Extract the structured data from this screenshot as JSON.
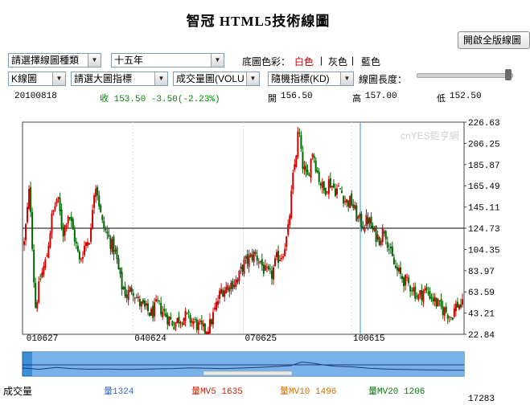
{
  "header": {
    "title": "智冠 HTML5技術線圖"
  },
  "toolbar": {
    "fullscreen_label": "開啟全版線圖",
    "chart_type_select": "請選擇線圖種類",
    "period_select": "十五年",
    "bg_color_label": "底圖色彩：",
    "bg_colors": [
      {
        "label": "白色",
        "color": "#cc0000"
      },
      {
        "label": "灰色",
        "color": "#000000"
      },
      {
        "label": "藍色",
        "color": "#000000"
      }
    ],
    "separator": "|",
    "k_select": "K線圖",
    "main_indicator_select": "請選大圖指標",
    "volume_select": "成交量圖(VOLU",
    "random_indicator_select": "隨機指標(KD)",
    "length_label": "線圖長度：",
    "length_slider_value": 0.98
  },
  "quote": {
    "date": "20100818",
    "close": "收 153.50 -3.50(-2.23%)",
    "open_label": "開",
    "open": "156.50",
    "high_label": "高",
    "high": "157.00",
    "low_label": "低",
    "low": "152.50",
    "close_color": "#008800"
  },
  "watermark": "cnYES鉅亨網",
  "bottom": {
    "volume_label": "成交量",
    "vol": "量1324",
    "mv5": "量MV5 1635",
    "mv10": "量MV10 1496",
    "mv20": "量MV20 1206",
    "vol_color": "#3366cc",
    "mv5_color": "#cc2200",
    "mv10_color": "#d07000",
    "mv20_color": "#117711",
    "max_volume": "17283"
  },
  "chart_data": {
    "type": "candlestick",
    "y_ticks": [
      "226.63",
      "206.25",
      "185.87",
      "165.49",
      "145.11",
      "124.73",
      "104.35",
      "83.97",
      "63.59",
      "43.21",
      "22.84"
    ],
    "x_ticks": [
      "010627",
      "040624",
      "070625",
      "100615"
    ],
    "ylim": [
      22.84,
      226.63
    ],
    "reference_line": 124.73,
    "crosshair_x_label": "100615",
    "colors": {
      "up": "#cc0000",
      "down": "#006600",
      "reference": "#000000",
      "crosshair": "#66bbee",
      "grid": "#dddddd"
    },
    "price_path": [
      [
        0,
        110
      ],
      [
        2,
        165
      ],
      [
        4,
        48
      ],
      [
        6,
        78
      ],
      [
        8,
        95
      ],
      [
        10,
        135
      ],
      [
        12,
        155
      ],
      [
        14,
        120
      ],
      [
        16,
        140
      ],
      [
        18,
        118
      ],
      [
        20,
        92
      ],
      [
        22,
        110
      ],
      [
        24,
        118
      ],
      [
        25,
        160
      ],
      [
        26,
        168
      ],
      [
        28,
        130
      ],
      [
        30,
        118
      ],
      [
        33,
        100
      ],
      [
        35,
        70
      ],
      [
        37,
        60
      ],
      [
        39,
        68
      ],
      [
        41,
        55
      ],
      [
        43,
        48
      ],
      [
        46,
        42
      ],
      [
        48,
        52
      ],
      [
        50,
        45
      ],
      [
        52,
        38
      ],
      [
        54,
        33
      ],
      [
        56,
        38
      ],
      [
        58,
        40
      ],
      [
        61,
        35
      ],
      [
        63,
        30
      ],
      [
        65,
        26
      ],
      [
        67,
        32
      ],
      [
        69,
        48
      ],
      [
        71,
        65
      ],
      [
        73,
        68
      ],
      [
        75,
        72
      ],
      [
        77,
        75
      ],
      [
        79,
        90
      ],
      [
        81,
        95
      ],
      [
        83,
        100
      ],
      [
        85,
        93
      ],
      [
        87,
        82
      ],
      [
        89,
        78
      ],
      [
        91,
        95
      ],
      [
        93,
        100
      ],
      [
        95,
        118
      ],
      [
        97,
        175
      ],
      [
        98,
        196
      ],
      [
        99,
        222
      ],
      [
        100,
        190
      ],
      [
        102,
        170
      ],
      [
        104,
        200
      ],
      [
        106,
        175
      ],
      [
        108,
        160
      ],
      [
        110,
        170
      ],
      [
        112,
        162
      ],
      [
        114,
        162
      ],
      [
        116,
        150
      ],
      [
        118,
        150
      ],
      [
        120,
        135
      ],
      [
        122,
        128
      ],
      [
        124,
        133
      ],
      [
        126,
        120
      ],
      [
        128,
        115
      ],
      [
        130,
        125
      ],
      [
        132,
        100
      ],
      [
        134,
        85
      ],
      [
        136,
        78
      ],
      [
        138,
        72
      ],
      [
        140,
        68
      ],
      [
        142,
        58
      ],
      [
        144,
        65
      ],
      [
        146,
        62
      ],
      [
        148,
        55
      ],
      [
        150,
        48
      ],
      [
        152,
        45
      ],
      [
        154,
        40
      ],
      [
        156,
        52
      ],
      [
        158,
        50
      ]
    ],
    "volume_path": [
      [
        0,
        4000
      ],
      [
        6,
        3000
      ],
      [
        12,
        4500
      ],
      [
        18,
        3500
      ],
      [
        24,
        3000
      ],
      [
        30,
        3200
      ],
      [
        36,
        2800
      ],
      [
        42,
        3000
      ],
      [
        48,
        3300
      ],
      [
        54,
        3600
      ],
      [
        60,
        4200
      ],
      [
        66,
        3800
      ],
      [
        72,
        3500
      ],
      [
        78,
        4000
      ],
      [
        84,
        4500
      ],
      [
        90,
        5200
      ],
      [
        96,
        6000
      ],
      [
        100,
        9000
      ],
      [
        104,
        8000
      ],
      [
        108,
        6500
      ],
      [
        112,
        5500
      ],
      [
        118,
        5000
      ],
      [
        124,
        3800
      ],
      [
        130,
        3200
      ],
      [
        136,
        2800
      ],
      [
        142,
        2600
      ],
      [
        148,
        2400
      ],
      [
        154,
        2200
      ],
      [
        158,
        2100
      ]
    ],
    "volume_max": 17283
  }
}
